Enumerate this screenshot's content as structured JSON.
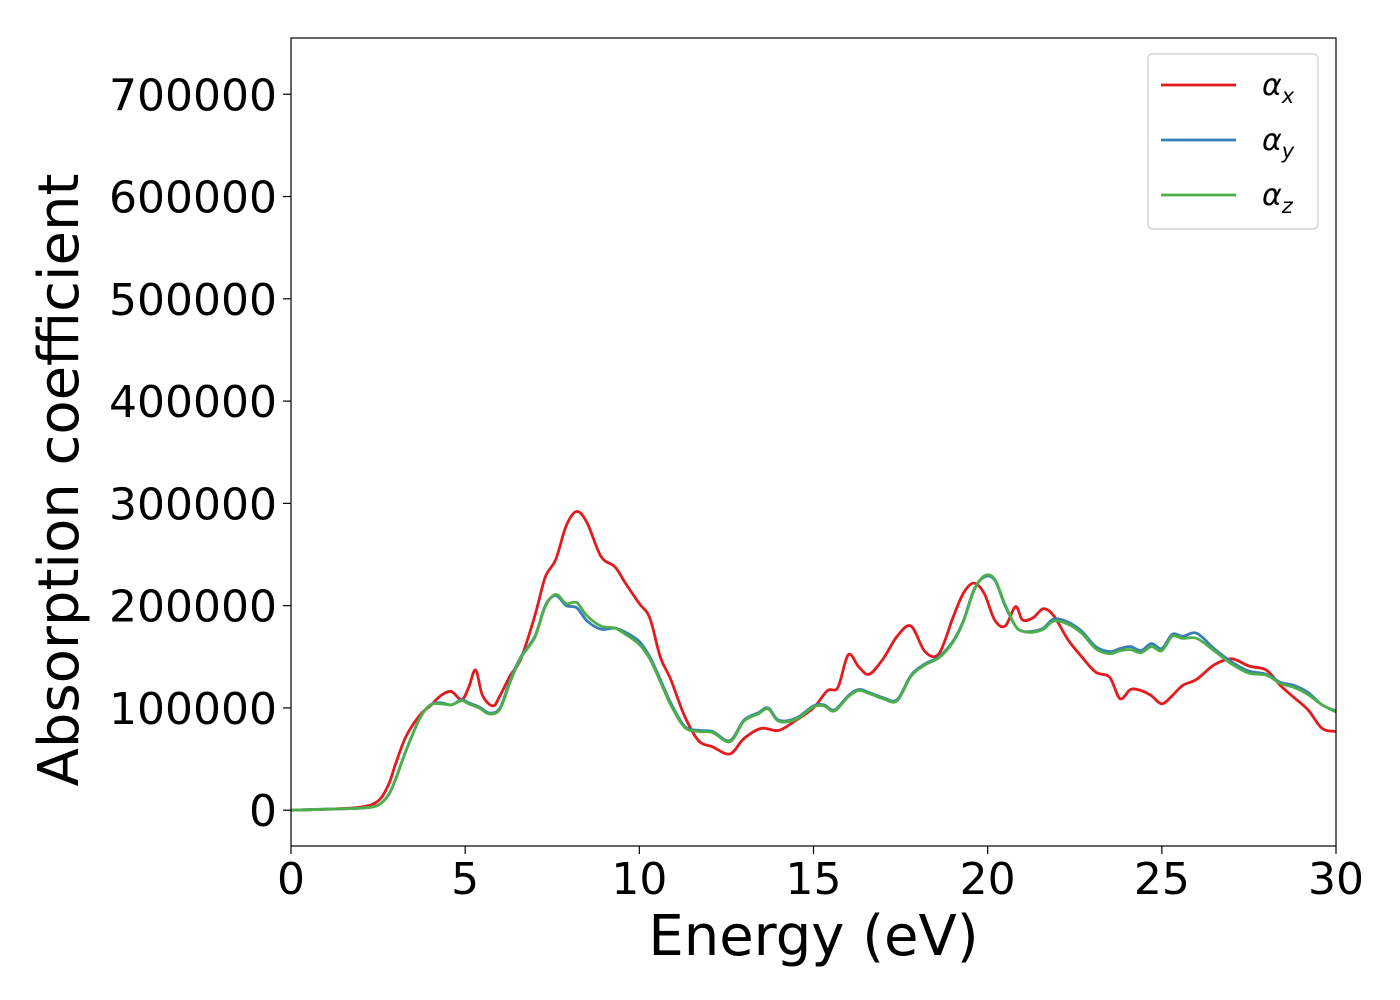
{
  "chart_data": {
    "type": "line",
    "title": "",
    "xlabel": "Energy (eV)",
    "ylabel": "Absorption coefficient",
    "xlim": [
      0,
      30
    ],
    "ylim": [
      -35000,
      755000
    ],
    "xticks": [
      0,
      5,
      10,
      15,
      20,
      25,
      30
    ],
    "xtick_labels": [
      "0",
      "5",
      "10",
      "15",
      "20",
      "25",
      "30"
    ],
    "yticks": [
      0,
      100000,
      200000,
      300000,
      400000,
      500000,
      600000,
      700000
    ],
    "ytick_labels": [
      "0",
      "100000",
      "200000",
      "300000",
      "400000",
      "500000",
      "600000",
      "700000"
    ],
    "grid": false,
    "legend_position": "top-right",
    "series": [
      {
        "name": "α_x",
        "label_main": "α",
        "label_sub": "x",
        "color": "#e41a1c",
        "x": [
          0,
          1,
          2,
          2.5,
          2.8,
          3,
          3.3,
          3.7,
          4,
          4.3,
          4.6,
          4.9,
          5.1,
          5.3,
          5.5,
          5.8,
          6,
          6.3,
          6.6,
          7,
          7.3,
          7.6,
          7.9,
          8.2,
          8.5,
          8.9,
          9.3,
          9.6,
          10,
          10.3,
          10.6,
          10.9,
          11.3,
          11.7,
          12.1,
          12.6,
          13,
          13.5,
          14,
          14.5,
          15,
          15.4,
          15.7,
          16,
          16.3,
          16.6,
          17,
          17.4,
          17.8,
          18.2,
          18.6,
          19,
          19.3,
          19.6,
          19.9,
          20.2,
          20.5,
          20.8,
          21,
          21.3,
          21.6,
          21.9,
          22.3,
          22.7,
          23.1,
          23.5,
          23.8,
          24.1,
          24.4,
          24.7,
          25,
          25.3,
          25.6,
          26,
          26.5,
          27,
          27.5,
          28,
          28.4,
          28.8,
          29.2,
          29.6,
          30
        ],
        "y": [
          0,
          1000,
          3000,
          9000,
          25000,
          45000,
          72000,
          93000,
          102000,
          112000,
          116000,
          108000,
          120000,
          137000,
          112000,
          102000,
          112000,
          132000,
          148000,
          190000,
          228000,
          245000,
          278000,
          292000,
          281000,
          248000,
          238000,
          222000,
          202000,
          188000,
          150000,
          128000,
          92000,
          68000,
          62000,
          55000,
          70000,
          80000,
          78000,
          88000,
          100000,
          117000,
          120000,
          152000,
          140000,
          133000,
          148000,
          170000,
          180000,
          155000,
          153000,
          188000,
          212000,
          222000,
          212000,
          186000,
          180000,
          199000,
          186000,
          188000,
          197000,
          190000,
          167000,
          150000,
          135000,
          130000,
          109000,
          118000,
          117000,
          112000,
          104000,
          112000,
          122000,
          128000,
          142000,
          148000,
          141000,
          137000,
          122000,
          110000,
          98000,
          80000,
          77000
        ]
      },
      {
        "name": "α_y",
        "label_main": "α",
        "label_sub": "y",
        "color": "#377eb8",
        "x": [
          0,
          1,
          2,
          2.5,
          2.8,
          3,
          3.3,
          3.7,
          4,
          4.3,
          4.6,
          4.9,
          5.1,
          5.4,
          5.7,
          6,
          6.3,
          6.6,
          7,
          7.3,
          7.6,
          7.9,
          8.2,
          8.5,
          8.9,
          9.3,
          9.6,
          10,
          10.3,
          10.6,
          10.9,
          11.3,
          11.7,
          12.1,
          12.6,
          13,
          13.4,
          13.7,
          14,
          14.5,
          15,
          15.3,
          15.6,
          16,
          16.3,
          16.6,
          17,
          17.4,
          17.8,
          18.2,
          18.6,
          19,
          19.3,
          19.6,
          19.9,
          20.2,
          20.5,
          20.8,
          21,
          21.3,
          21.6,
          21.9,
          22.3,
          22.7,
          23.1,
          23.5,
          23.8,
          24.1,
          24.4,
          24.7,
          25,
          25.3,
          25.6,
          26,
          26.5,
          27,
          27.5,
          28,
          28.4,
          28.8,
          29.2,
          29.6,
          30
        ],
        "y": [
          0,
          1000,
          2000,
          5000,
          15000,
          30000,
          58000,
          90000,
          103000,
          105000,
          103000,
          108000,
          105000,
          101000,
          95000,
          100000,
          128000,
          150000,
          170000,
          200000,
          210000,
          200000,
          198000,
          185000,
          177000,
          178000,
          174000,
          165000,
          150000,
          128000,
          105000,
          82000,
          78000,
          77000,
          68000,
          88000,
          95000,
          100000,
          88000,
          90000,
          102000,
          103000,
          98000,
          112000,
          118000,
          115000,
          110000,
          108000,
          132000,
          143000,
          150000,
          165000,
          185000,
          215000,
          228000,
          225000,
          200000,
          180000,
          175000,
          175000,
          178000,
          187000,
          184000,
          175000,
          160000,
          155000,
          158000,
          160000,
          156000,
          163000,
          158000,
          172000,
          170000,
          173000,
          158000,
          145000,
          136000,
          133000,
          125000,
          122000,
          115000,
          103000,
          97000
        ]
      },
      {
        "name": "α_z",
        "label_main": "α",
        "label_sub": "z",
        "color": "#4daf4a",
        "x": [
          0,
          1,
          2,
          2.5,
          2.8,
          3,
          3.3,
          3.7,
          4,
          4.3,
          4.6,
          4.9,
          5.1,
          5.4,
          5.7,
          6,
          6.3,
          6.6,
          7,
          7.3,
          7.6,
          7.9,
          8.2,
          8.5,
          8.9,
          9.3,
          9.6,
          10,
          10.3,
          10.6,
          10.9,
          11.3,
          11.7,
          12.1,
          12.6,
          13,
          13.4,
          13.7,
          14,
          14.5,
          15,
          15.3,
          15.6,
          16,
          16.3,
          16.6,
          17,
          17.4,
          17.8,
          18.2,
          18.6,
          19,
          19.3,
          19.6,
          19.9,
          20.2,
          20.5,
          20.8,
          21,
          21.3,
          21.6,
          21.9,
          22.3,
          22.7,
          23.1,
          23.5,
          23.8,
          24.1,
          24.4,
          24.7,
          25,
          25.3,
          25.6,
          26,
          26.5,
          27,
          27.5,
          28,
          28.4,
          28.8,
          29.2,
          29.6,
          30
        ],
        "y": [
          0,
          1000,
          2000,
          5000,
          15000,
          30000,
          58000,
          90000,
          103000,
          104000,
          103000,
          107000,
          104000,
          100000,
          94000,
          99000,
          126000,
          149000,
          169000,
          199000,
          211000,
          202000,
          203000,
          190000,
          180000,
          178000,
          172000,
          162000,
          148000,
          126000,
          103000,
          81000,
          77000,
          76000,
          67000,
          87000,
          94000,
          99000,
          87000,
          89000,
          101000,
          102000,
          97000,
          111000,
          117000,
          114000,
          109000,
          107000,
          131000,
          142000,
          149000,
          164000,
          184000,
          214000,
          229000,
          226000,
          201000,
          180000,
          175000,
          174000,
          177000,
          185000,
          182000,
          173000,
          158000,
          153000,
          156000,
          157000,
          154000,
          160000,
          156000,
          170000,
          168000,
          168000,
          156000,
          143000,
          134000,
          132000,
          124000,
          120000,
          113000,
          103000,
          96000
        ]
      }
    ]
  }
}
